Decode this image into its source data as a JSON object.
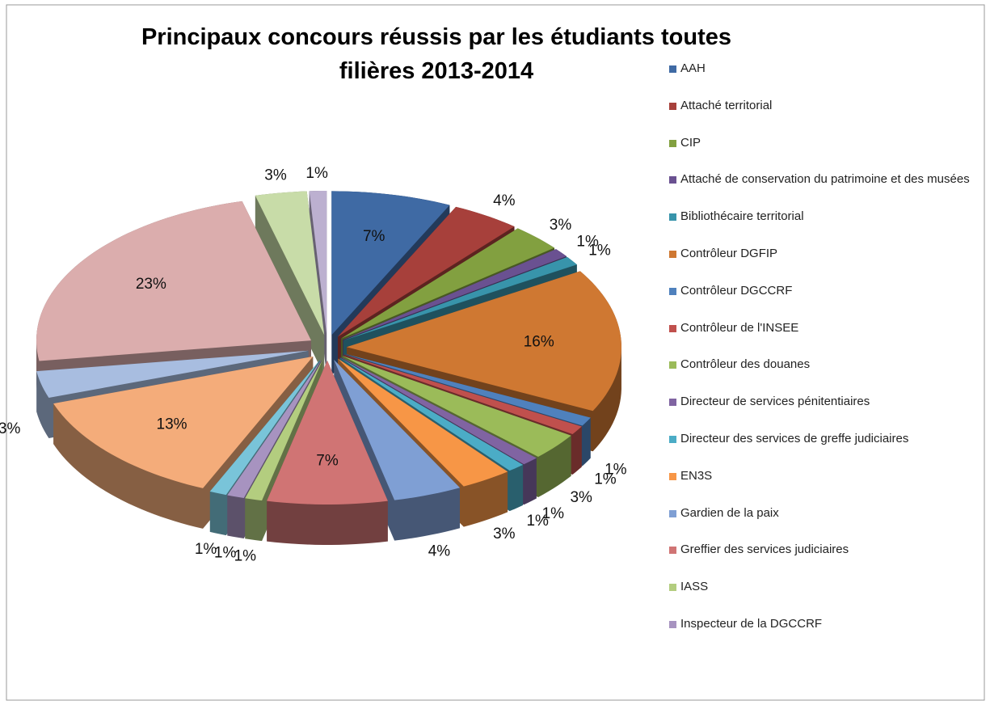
{
  "chart_data": {
    "type": "pie3d",
    "title": "Principaux concours réussis par les étudiants toutes filières 2013-2014",
    "categories": [
      "AAH",
      "Attaché territorial",
      "CIP",
      "Attaché de conservation du patrimoine et des musées",
      "Bibliothécaire territorial",
      "Contrôleur DGFIP",
      "Contrôleur DGCCRF",
      "Contrôleur de l'INSEE",
      "Contrôleur des douanes",
      "Directeur de services pénitentiaires",
      "Directeur des services de greffe judiciaires",
      "EN3S",
      "Gardien de la paix",
      "Greffier des services judiciaires",
      "IASS",
      "Inspecteur de la DGCCRF",
      null,
      null,
      null,
      null,
      null,
      null
    ],
    "values": [
      7,
      4,
      3,
      1,
      1,
      16,
      1,
      1,
      3,
      1,
      1,
      3,
      4,
      7,
      1,
      1,
      1,
      13,
      3,
      23,
      3,
      1
    ],
    "value_labels": [
      "7%",
      "4%",
      "3%",
      "1%",
      "1%",
      "16%",
      "1%",
      "1%",
      "3%",
      "1%",
      "1%",
      "3%",
      "4%",
      "7%",
      "1%",
      "1%",
      "1%",
      "13%",
      "3%",
      "23%",
      "3%",
      "1%"
    ],
    "colors": [
      "#3f6aa4",
      "#a7403b",
      "#82a040",
      "#6a5191",
      "#3894ab",
      "#cf7832",
      "#4f81bd",
      "#c0504d",
      "#9bbb59",
      "#8064a2",
      "#4bacc6",
      "#f79646",
      "#7f9fd4",
      "#d07474",
      "#b3cd7f",
      "#a793c0",
      "#79c4d9",
      "#f4ac7a",
      "#a8bde0",
      "#dbadad",
      "#c8dca8",
      "#bcb0d0"
    ],
    "legend": "right"
  }
}
